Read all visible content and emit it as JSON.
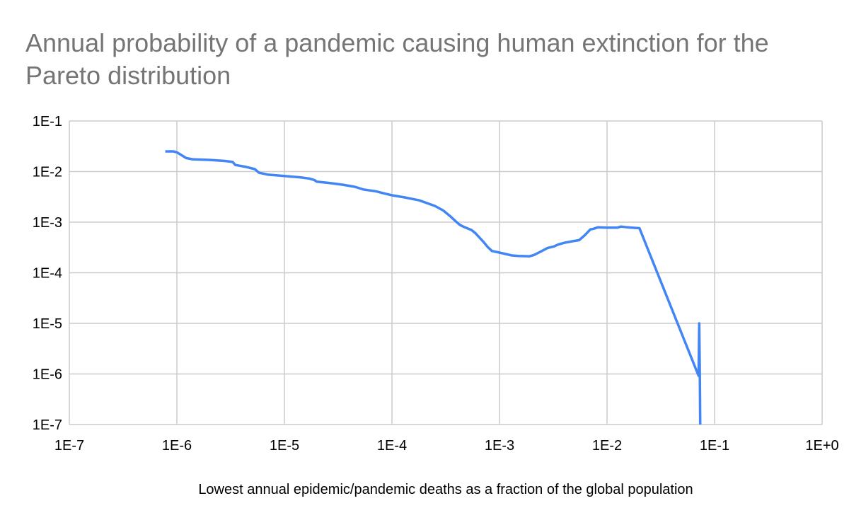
{
  "chart_data": {
    "type": "line",
    "title": "Annual probability of a pandemic causing human extinction for the Pareto distribution",
    "xlabel": "Lowest annual epidemic/pandemic deaths as a fraction of the global population",
    "ylabel": "",
    "x_scale": "log",
    "y_scale": "log",
    "xlim": [
      1e-07,
      1
    ],
    "ylim": [
      1e-07,
      0.1
    ],
    "x_tick_values": [
      1e-07,
      1e-06,
      1e-05,
      0.0001,
      0.001,
      0.01,
      0.1,
      1
    ],
    "x_tick_labels": [
      "1E-7",
      "1E-6",
      "1E-5",
      "1E-4",
      "1E-3",
      "1E-2",
      "1E-1",
      "1E+0"
    ],
    "y_tick_values": [
      1e-07,
      1e-06,
      1e-05,
      0.0001,
      0.001,
      0.01,
      0.1
    ],
    "y_tick_labels": [
      "1E-7",
      "1E-6",
      "1E-5",
      "1E-4",
      "1E-3",
      "1E-2",
      "1E-1"
    ],
    "grid": true,
    "legend": "none",
    "series": [
      {
        "color": "#4285f4",
        "x": [
          7.8e-07,
          9.3e-07,
          1e-06,
          1.2e-06,
          1.22e-06,
          1.4e-06,
          2e-06,
          2.8e-06,
          3.3e-06,
          3.5e-06,
          4.3e-06,
          5.3e-06,
          5.8e-06,
          7e-06,
          1e-05,
          1.4e-05,
          1.7e-05,
          1.9e-05,
          2e-05,
          2.7e-05,
          3.5e-05,
          4.5e-05,
          5.5e-05,
          7e-05,
          8.5e-05,
          0.0001,
          0.00013,
          0.00018,
          0.00025,
          0.0003,
          0.00035,
          0.0004,
          0.00043,
          0.00046,
          0.00055,
          0.0006,
          0.0007,
          0.00078,
          0.00085,
          0.001,
          0.0013,
          0.0015,
          0.0019,
          0.0021,
          0.0024,
          0.0028,
          0.0032,
          0.0035,
          0.004,
          0.0048,
          0.0055,
          0.0062,
          0.007,
          0.0075,
          0.0082,
          0.01,
          0.0125,
          0.0135,
          0.0155,
          0.02,
          0.071,
          0.072,
          0.073,
          0.0735
        ],
        "y": [
          0.025,
          0.025,
          0.024,
          0.019,
          0.0185,
          0.0175,
          0.017,
          0.0162,
          0.0155,
          0.0135,
          0.0125,
          0.0112,
          0.0095,
          0.0087,
          0.0082,
          0.0077,
          0.0073,
          0.0068,
          0.0063,
          0.0059,
          0.0055,
          0.005,
          0.0044,
          0.0041,
          0.0037,
          0.0034,
          0.0031,
          0.0027,
          0.0021,
          0.0017,
          0.0013,
          0.001,
          0.00088,
          0.00082,
          0.0007,
          0.0006,
          0.00042,
          0.00032,
          0.00027,
          0.00025,
          0.00022,
          0.000215,
          0.000212,
          0.000225,
          0.00026,
          0.00031,
          0.00033,
          0.00036,
          0.00039,
          0.00042,
          0.00044,
          0.00055,
          0.00072,
          0.00074,
          0.00079,
          0.00078,
          0.00078,
          0.00082,
          0.00079,
          0.00076,
          9.2e-07,
          1e-05,
          8.1e-07,
          1e-07
        ]
      }
    ]
  }
}
